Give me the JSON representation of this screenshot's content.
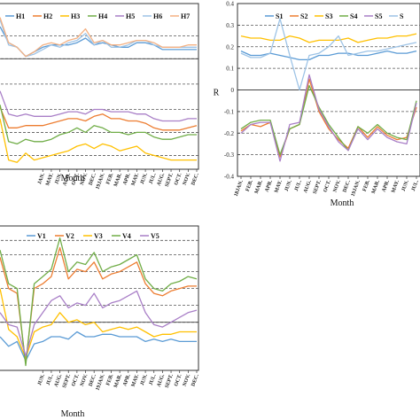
{
  "chart_data": [
    {
      "id": "top-left",
      "type": "line",
      "xlabel": "Month",
      "ylabel": "",
      "categories": [
        "JAN.",
        "FEB.",
        "MAR.",
        "APR.",
        "MAY.",
        "JUN.",
        "JUL.",
        "AUG.",
        "SEPT.",
        "OCT.",
        "NOV.",
        "DEC.",
        "19JAN.",
        "FEB.",
        "MAR.",
        "APR.",
        "MAY.",
        "JUN.",
        "JUL.",
        "AUG.",
        "SEPT.",
        "OCT.",
        "NOV.",
        "DEC."
      ],
      "visible_tick_labels": [
        "JAN.",
        "MAY.",
        "JUN.",
        "AUG.",
        "OCT.",
        "NOV.",
        "DEC.",
        "19JAN.",
        "FEB.",
        "MAR.",
        "APR.",
        "MAY.",
        "JUN.",
        "JUL.",
        "AUG.",
        "SEPT.",
        "OCT.",
        "NOV.",
        "DEC."
      ],
      "legend": [
        "H1",
        "H2",
        "H3",
        "H4",
        "H5",
        "H6",
        "H7"
      ],
      "grid": "dashed horizontal",
      "series": [
        {
          "name": "H1",
          "color": "#5b9bd5",
          "values": [
            0.3,
            0.23,
            0.21,
            0.17,
            0.19,
            0.21,
            0.22,
            0.22,
            0.22,
            0.23,
            0.25,
            0.22,
            0.23,
            0.22,
            0.21,
            0.21,
            0.23,
            0.23,
            0.22,
            0.2,
            0.2,
            0.2,
            0.2,
            0.2
          ]
        },
        {
          "name": "H2",
          "color": "#ed7d31",
          "values": [
            -0.05,
            -0.14,
            -0.14,
            -0.13,
            -0.13,
            -0.13,
            -0.12,
            -0.11,
            -0.1,
            -0.1,
            -0.11,
            -0.09,
            -0.08,
            -0.1,
            -0.1,
            -0.11,
            -0.11,
            -0.12,
            -0.14,
            -0.15,
            -0.15,
            -0.15,
            -0.14,
            -0.13
          ]
        },
        {
          "name": "H3",
          "color": "#ffc000",
          "values": [
            -0.1,
            -0.28,
            -0.29,
            -0.25,
            -0.28,
            -0.27,
            -0.26,
            -0.25,
            -0.24,
            -0.22,
            -0.21,
            -0.23,
            -0.21,
            -0.22,
            -0.24,
            -0.23,
            -0.22,
            -0.25,
            -0.26,
            -0.27,
            -0.28,
            -0.28,
            -0.28,
            -0.28
          ]
        },
        {
          "name": "H4",
          "color": "#70ad47",
          "values": [
            -0.04,
            -0.2,
            -0.21,
            -0.19,
            -0.2,
            -0.2,
            -0.19,
            -0.17,
            -0.16,
            -0.14,
            -0.16,
            -0.13,
            -0.14,
            -0.16,
            -0.16,
            -0.17,
            -0.16,
            -0.16,
            -0.18,
            -0.19,
            -0.19,
            -0.18,
            -0.17,
            -0.17
          ]
        },
        {
          "name": "H5",
          "color": "#a97fc7",
          "values": [
            0.02,
            -0.08,
            -0.09,
            -0.08,
            -0.09,
            -0.09,
            -0.09,
            -0.08,
            -0.07,
            -0.07,
            -0.08,
            -0.06,
            -0.06,
            -0.07,
            -0.07,
            -0.07,
            -0.08,
            -0.08,
            -0.1,
            -0.11,
            -0.11,
            -0.11,
            -0.1,
            -0.1
          ]
        },
        {
          "name": "H6",
          "color": "#9dc3e6",
          "values": [
            0.33,
            0.22,
            0.21,
            0.17,
            0.18,
            0.2,
            0.22,
            0.21,
            0.23,
            0.24,
            0.27,
            0.22,
            0.24,
            0.21,
            0.21,
            0.22,
            0.24,
            0.24,
            0.22,
            0.21,
            0.21,
            0.21,
            0.21,
            0.21
          ]
        },
        {
          "name": "H7",
          "color": "#f4b183",
          "values": [
            0.34,
            0.23,
            0.21,
            0.17,
            0.19,
            0.22,
            0.23,
            0.22,
            0.24,
            0.25,
            0.29,
            0.23,
            0.24,
            0.22,
            0.22,
            0.23,
            0.24,
            0.24,
            0.23,
            0.21,
            0.21,
            0.21,
            0.22,
            0.22
          ]
        }
      ]
    },
    {
      "id": "top-right",
      "type": "line",
      "xlabel": "Month",
      "ylabel": "R",
      "ylim": [
        -0.4,
        0.4
      ],
      "yticks": [
        "0.4",
        "0.3",
        "0.2",
        "0.1",
        "0",
        "-0.1",
        "-0.2",
        "-0.3",
        "-0.4"
      ],
      "categories": [
        "18JAN.",
        "FEB.",
        "MAR.",
        "APR.",
        "MAY.",
        "JUN.",
        "JUL.",
        "AUG.",
        "SEPT.",
        "OCT.",
        "NOV.",
        "DEC.",
        "19JAN.",
        "FEB.",
        "MAR.",
        "APR.",
        "MAY.",
        "JUN.",
        "JUL."
      ],
      "legend": [
        "S1",
        "S2",
        "S3",
        "S4",
        "S5",
        "S"
      ],
      "grid": "dashed horizontal",
      "series": [
        {
          "name": "S1",
          "color": "#5b9bd5",
          "values": [
            0.18,
            0.16,
            0.16,
            0.17,
            0.16,
            0.15,
            0.14,
            0.14,
            0.16,
            0.16,
            0.17,
            0.17,
            0.16,
            0.16,
            0.17,
            0.18,
            0.17,
            0.17,
            0.18
          ]
        },
        {
          "name": "S2",
          "color": "#ed7d31",
          "values": [
            -0.19,
            -0.16,
            -0.17,
            -0.15,
            -0.31,
            -0.18,
            -0.16,
            0.05,
            -0.1,
            -0.18,
            -0.23,
            -0.27,
            -0.17,
            -0.22,
            -0.17,
            -0.21,
            -0.23,
            -0.22,
            -0.08
          ]
        },
        {
          "name": "S3",
          "color": "#ffc000",
          "values": [
            0.25,
            0.24,
            0.24,
            0.23,
            0.23,
            0.25,
            0.24,
            0.22,
            0.23,
            0.23,
            0.23,
            0.24,
            0.22,
            0.23,
            0.24,
            0.24,
            0.25,
            0.25,
            0.26
          ]
        },
        {
          "name": "S4",
          "color": "#70ad47",
          "values": [
            -0.18,
            -0.15,
            -0.14,
            -0.14,
            -0.3,
            -0.18,
            -0.16,
            0.02,
            -0.08,
            -0.16,
            -0.22,
            -0.28,
            -0.17,
            -0.2,
            -0.16,
            -0.2,
            -0.22,
            -0.23,
            -0.05
          ]
        },
        {
          "name": "S5",
          "color": "#a97fc7",
          "values": [
            -0.2,
            -0.16,
            -0.15,
            -0.15,
            -0.33,
            -0.16,
            -0.15,
            0.07,
            -0.09,
            -0.17,
            -0.24,
            -0.28,
            -0.18,
            -0.23,
            -0.18,
            -0.22,
            -0.24,
            -0.25,
            -0.06
          ]
        },
        {
          "name": "S",
          "color": "#9dc3e6",
          "values": [
            0.17,
            0.15,
            0.15,
            0.17,
            0.33,
            0.16,
            0.0,
            0.16,
            0.17,
            0.2,
            0.25,
            0.16,
            0.17,
            0.18,
            0.18,
            0.19,
            0.2,
            0.21,
            0.22
          ]
        }
      ]
    },
    {
      "id": "bottom-left",
      "type": "line",
      "xlabel": "Month",
      "ylabel": "",
      "categories": [
        "JAN.",
        "FEB.",
        "MAR.",
        "APR.",
        "MAY.",
        "JUN.",
        "JUL.",
        "AUG.",
        "SEPT.",
        "OCT.",
        "NOV.",
        "DEC.",
        "19JAN.",
        "FEB.",
        "MAR.",
        "APR.",
        "MAY.",
        "JUN.",
        "JUL.",
        "AUG.",
        "SEPT.",
        "OCT.",
        "NOV.",
        "DEC."
      ],
      "visible_tick_labels": [
        "JUN.",
        "JUL.",
        "AUG.",
        "SEPT.",
        "OCT.",
        "NOV.",
        "DEC.",
        "19JAN.",
        "FEB.",
        "MAR.",
        "APR.",
        "MAY.",
        "JUN.",
        "JUL.",
        "AUG.",
        "SEPT.",
        "OCT.",
        "NOV.",
        "DEC."
      ],
      "legend": [
        "V1",
        "V2",
        "V3",
        "V4",
        "V5"
      ],
      "grid": "dashed horizontal",
      "series": [
        {
          "name": "V1",
          "color": "#5b9bd5",
          "values": [
            0.0,
            -0.04,
            -0.02,
            -0.1,
            -0.03,
            -0.02,
            0.0,
            0.0,
            -0.01,
            0.02,
            0.0,
            0.0,
            0.01,
            0.01,
            0.0,
            0.0,
            0.0,
            -0.02,
            -0.01,
            -0.02,
            -0.01,
            -0.02,
            -0.02,
            -0.02
          ]
        },
        {
          "name": "V2",
          "color": "#ed7d31",
          "values": [
            0.33,
            0.2,
            0.18,
            -0.11,
            0.2,
            0.22,
            0.25,
            0.37,
            0.24,
            0.28,
            0.27,
            0.31,
            0.24,
            0.26,
            0.27,
            0.29,
            0.31,
            0.22,
            0.18,
            0.17,
            0.19,
            0.2,
            0.21,
            0.21
          ]
        },
        {
          "name": "V3",
          "color": "#ffc000",
          "values": [
            0.2,
            0.03,
            0.0,
            -0.09,
            0.02,
            0.04,
            0.05,
            0.1,
            0.06,
            0.07,
            0.05,
            0.06,
            0.02,
            0.03,
            0.04,
            0.03,
            0.04,
            0.02,
            0.0,
            0.01,
            0.01,
            0.02,
            0.02,
            0.02
          ]
        },
        {
          "name": "V4",
          "color": "#70ad47",
          "values": [
            0.36,
            0.22,
            0.2,
            -0.12,
            0.22,
            0.25,
            0.28,
            0.41,
            0.27,
            0.31,
            0.3,
            0.35,
            0.27,
            0.29,
            0.3,
            0.32,
            0.34,
            0.24,
            0.2,
            0.19,
            0.22,
            0.23,
            0.25,
            0.24
          ]
        },
        {
          "name": "V5",
          "color": "#a97fc7",
          "values": [
            0.1,
            0.05,
            0.04,
            -0.08,
            0.05,
            0.1,
            0.15,
            0.17,
            0.12,
            0.14,
            0.13,
            0.18,
            0.12,
            0.14,
            0.15,
            0.17,
            0.19,
            0.1,
            0.05,
            0.04,
            0.06,
            0.08,
            0.1,
            0.11
          ]
        }
      ]
    }
  ]
}
